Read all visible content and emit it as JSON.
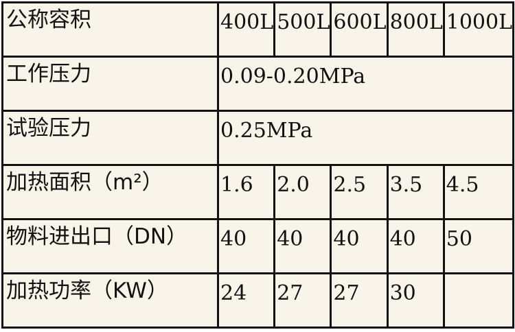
{
  "table": {
    "rows": [
      {
        "label": "公称容积",
        "cells": [
          "400L",
          "500L",
          "600L",
          "800L",
          "1000L"
        ]
      },
      {
        "label": "工作压力",
        "span_value": "0.09-0.20MPa"
      },
      {
        "label": "试验压力",
        "span_value": "0.25MPa"
      },
      {
        "label": "加热面积（m²）",
        "cells": [
          "1.6",
          "2.0",
          "2.5",
          "3.5",
          "4.5"
        ]
      },
      {
        "label": "物料进出口（DN）",
        "cells": [
          "40",
          "40",
          "40",
          "40",
          "50"
        ]
      },
      {
        "label": "加热功率（KW）",
        "cells": [
          "24",
          "27",
          "27",
          "30",
          ""
        ]
      }
    ]
  }
}
